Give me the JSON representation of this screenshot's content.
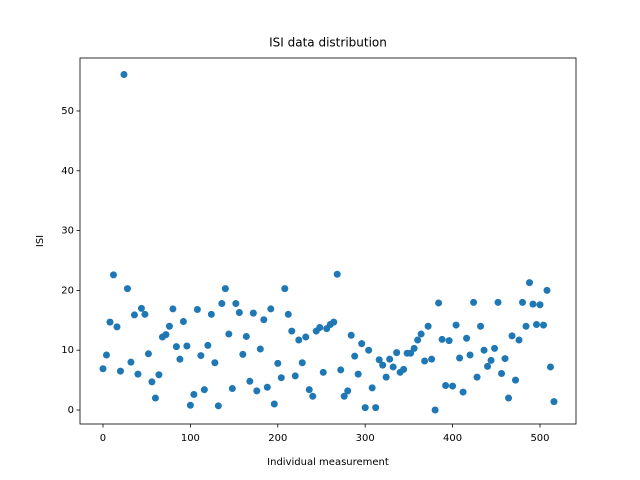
{
  "chart_data": {
    "type": "scatter",
    "title": "ISI data distribution",
    "x_label": "Individual measurement",
    "y_label": "ISI",
    "color": "#1f77b4",
    "xlim": [
      -26.3,
      541.2
    ],
    "ylim": [
      -2.34,
      58.86
    ],
    "xticks": [
      0,
      100,
      200,
      300,
      400,
      500
    ],
    "yticks": [
      0,
      10,
      20,
      30,
      40,
      50
    ],
    "x": [
      0,
      4,
      8,
      12,
      16,
      20,
      24,
      28,
      32,
      36,
      40,
      44,
      48,
      52,
      56,
      60,
      64,
      68,
      72,
      76,
      80,
      84,
      88,
      92,
      96,
      100,
      104,
      108,
      112,
      116,
      120,
      124,
      128,
      132,
      136,
      140,
      144,
      148,
      152,
      156,
      160,
      164,
      168,
      172,
      176,
      180,
      184,
      188,
      192,
      196,
      200,
      204,
      208,
      212,
      216,
      220,
      224,
      228,
      232,
      236,
      240,
      244,
      248,
      252,
      256,
      260,
      264,
      268,
      272,
      276,
      280,
      284,
      288,
      292,
      296,
      300,
      304,
      308,
      312,
      316,
      320,
      324,
      328,
      332,
      336,
      340,
      344,
      348,
      352,
      356,
      360,
      364,
      368,
      372,
      376,
      380,
      384,
      388,
      392,
      396,
      400,
      404,
      408,
      412,
      416,
      420,
      424,
      428,
      432,
      436,
      440,
      444,
      448,
      452,
      456,
      460,
      464,
      468,
      472,
      476,
      480,
      484,
      488,
      492,
      496,
      500,
      504,
      508,
      512,
      516
    ],
    "values": [
      6.9,
      9.2,
      14.7,
      22.6,
      13.9,
      6.5,
      56.1,
      20.3,
      8,
      15.9,
      6,
      17,
      16,
      9.4,
      4.7,
      2,
      5.9,
      12.2,
      12.6,
      14,
      16.9,
      10.6,
      8.5,
      14.8,
      10.7,
      0.8,
      2.6,
      16.8,
      9.1,
      3.4,
      10.8,
      16,
      7.9,
      0.7,
      17.8,
      20.3,
      12.7,
      3.6,
      17.8,
      16.3,
      9.3,
      12.3,
      4.8,
      16.2,
      3.2,
      10.2,
      15.1,
      3.8,
      16.9,
      1,
      7.8,
      5.4,
      20.3,
      16,
      13.2,
      5.7,
      11.7,
      7.9,
      12.2,
      3.4,
      2.3,
      13.2,
      13.8,
      6.3,
      13.6,
      14.3,
      14.7,
      22.7,
      6.7,
      2.3,
      3.2,
      12.5,
      9,
      6,
      11.1,
      0.4,
      10,
      3.7,
      0.4,
      8.4,
      7.5,
      5.5,
      8.5,
      7.2,
      9.6,
      6.3,
      6.8,
      9.5,
      9.5,
      10.3,
      11.7,
      12.7,
      8.2,
      14,
      8.5,
      0,
      17.9,
      11.8,
      4.1,
      11.6,
      4,
      14.2,
      8.7,
      3,
      12,
      9.2,
      18,
      5.5,
      14,
      10,
      7.3,
      8.3,
      10.3,
      18,
      6.1,
      8.6,
      2,
      12.4,
      5,
      11.7,
      18,
      14,
      21.3,
      17.7,
      14.3,
      17.6,
      14.2,
      20,
      7.2,
      1.4
    ]
  }
}
